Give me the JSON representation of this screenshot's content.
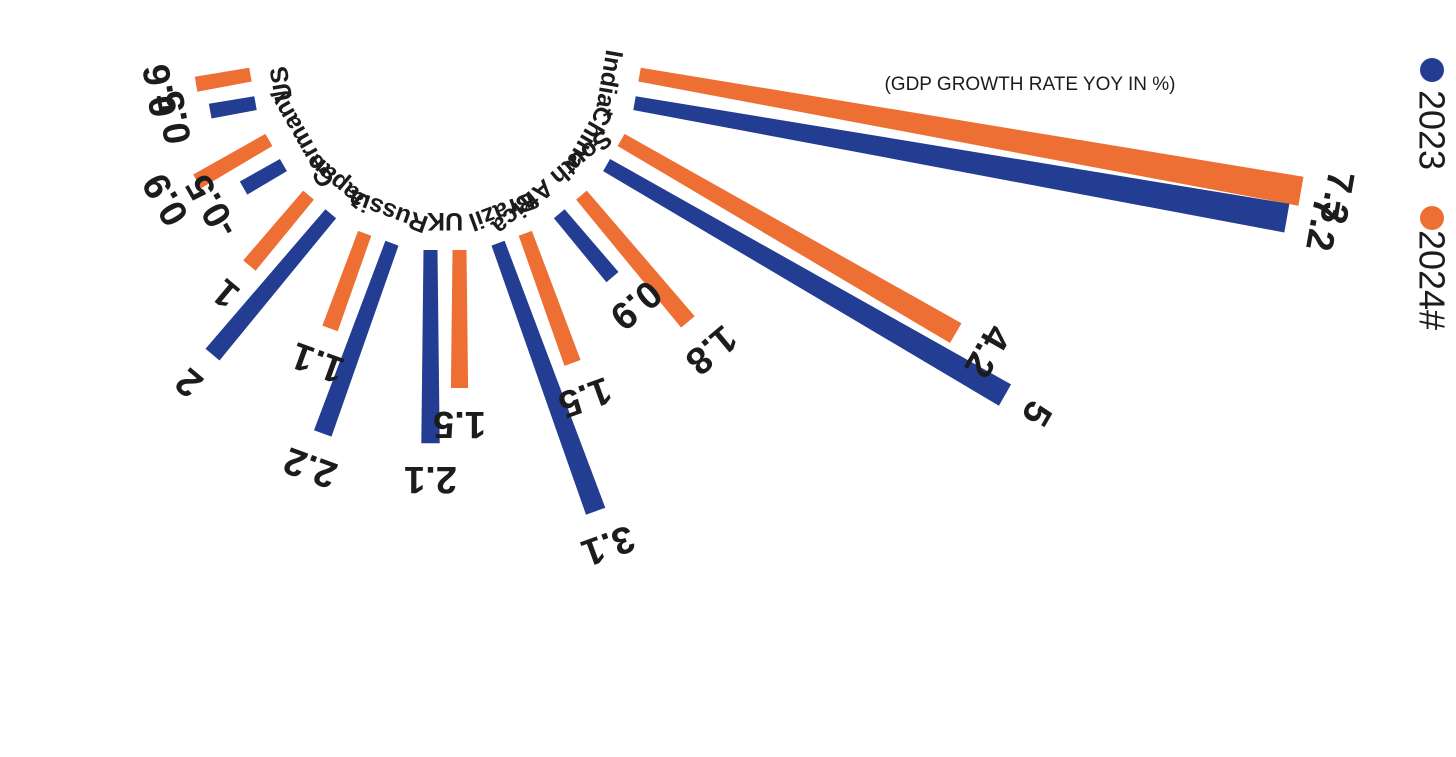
{
  "chart_data": {
    "type": "bar",
    "layout": "radial",
    "subtitle": "(GDP GROWTH RATE YOY IN %)",
    "categories": [
      "US",
      "Germany",
      "Japan",
      "Russia",
      "UK",
      "Brazil",
      "South Africa",
      "China",
      "India*"
    ],
    "series": [
      {
        "name": "2023",
        "color": "#223d91",
        "values": [
          0.5,
          -0.5,
          2,
          2.2,
          2.1,
          3.1,
          0.9,
          5,
          7.2
        ]
      },
      {
        "name": "2024#",
        "color": "#ee6f33",
        "values": [
          0.6,
          0.9,
          1,
          1.1,
          1.5,
          1.5,
          1.8,
          4.2,
          7.3
        ]
      }
    ],
    "value_labels": {
      "2023": [
        "0.5",
        "-0.5",
        "2",
        "2.2",
        "2.1",
        "3.1",
        "0.9",
        "5",
        "7.2"
      ],
      "2024#": [
        "0.6",
        "0.9",
        "1",
        "1.1",
        "1.5",
        "1.5",
        "1.8",
        "4.2",
        "7.3"
      ]
    },
    "legend": {
      "position": "right",
      "orientation": "vertical"
    }
  }
}
